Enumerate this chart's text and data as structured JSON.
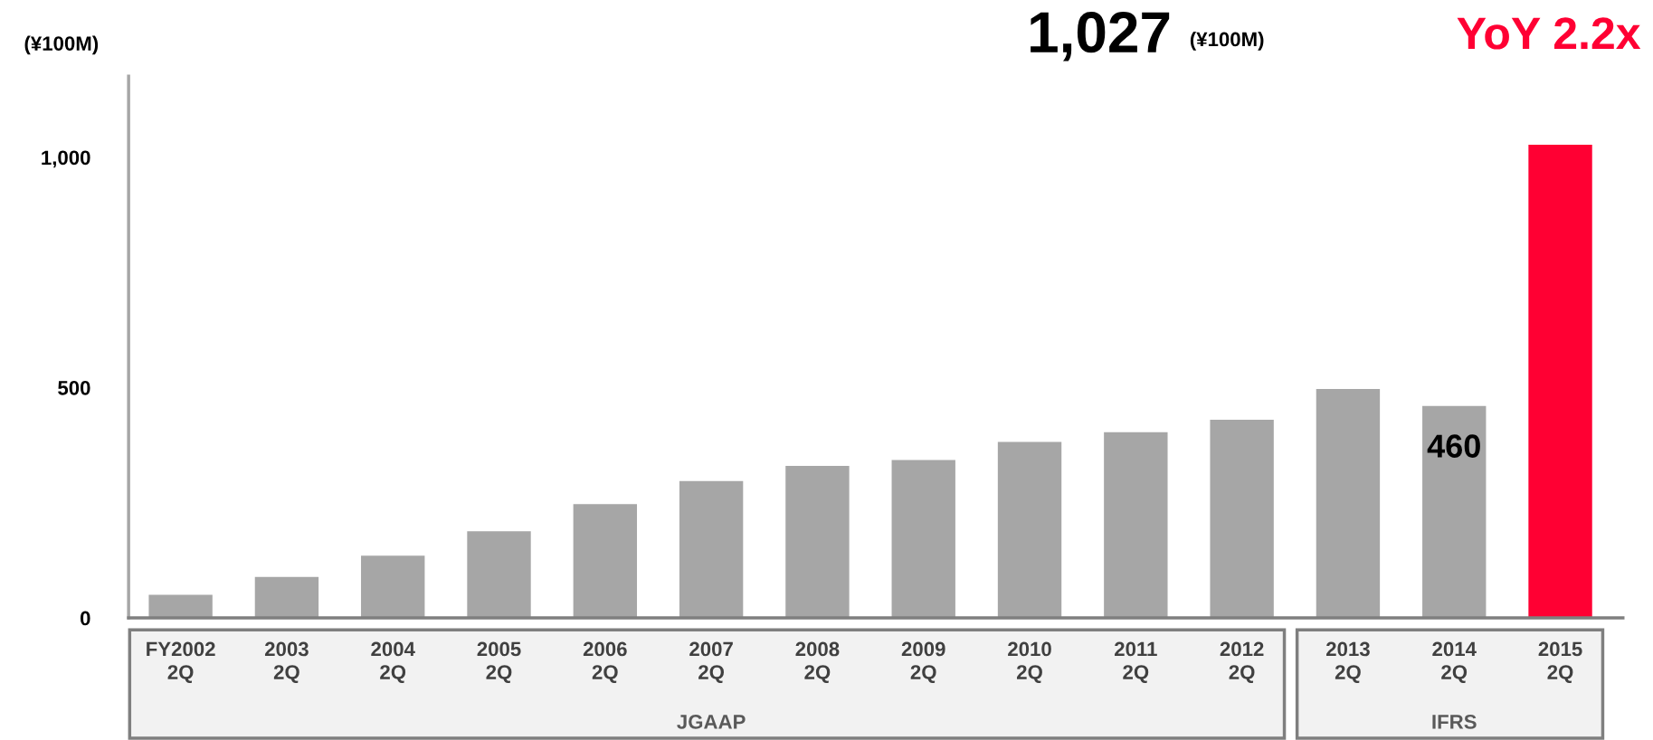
{
  "chart_data": {
    "type": "bar",
    "ylabel": "(¥100M)",
    "categories": [
      "FY2002\n2Q",
      "2003\n2Q",
      "2004\n2Q",
      "2005\n2Q",
      "2006\n2Q",
      "2007\n2Q",
      "2008\n2Q",
      "2009\n2Q",
      "2010\n2Q",
      "2011\n2Q",
      "2012\n2Q",
      "2013\n2Q",
      "2014\n2Q",
      "2015\n2Q"
    ],
    "values": [
      50,
      89,
      135,
      188,
      247,
      297,
      330,
      343,
      382,
      403,
      430,
      497,
      460,
      1027
    ],
    "colors": [
      "#a6a6a6",
      "#a6a6a6",
      "#a6a6a6",
      "#a6a6a6",
      "#a6a6a6",
      "#a6a6a6",
      "#a6a6a6",
      "#a6a6a6",
      "#a6a6a6",
      "#a6a6a6",
      "#a6a6a6",
      "#a6a6a6",
      "#a6a6a6",
      "#ff0033"
    ],
    "value_labels": [
      null,
      null,
      null,
      null,
      null,
      null,
      null,
      null,
      null,
      null,
      null,
      null,
      "460",
      null
    ],
    "ylim": [
      0,
      1176
    ],
    "yticks": [
      0,
      500,
      {
        "value": 1000,
        "label": "1,000"
      }
    ],
    "grid": false,
    "legend": false,
    "annotations": [
      "1,027",
      "(¥100M)",
      "YoY 2.2x",
      "JGAAP",
      "IFRS"
    ]
  }
}
